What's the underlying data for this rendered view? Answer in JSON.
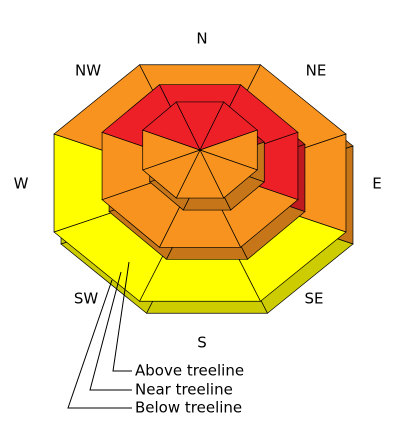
{
  "directions": [
    "N",
    "NE",
    "E",
    "SE",
    "S",
    "SW",
    "W",
    "NW"
  ],
  "bands": [
    {
      "label": "Below treeline",
      "colors": [
        "#f7931e",
        "#f7931e",
        "#f7931e",
        "#ffff00",
        "#ffff00",
        "#ffff00",
        "#ffff00",
        "#f7931e"
      ]
    },
    {
      "label": "Near treeline",
      "colors": [
        "#ee2027",
        "#ee2027",
        "#ee2027",
        "#f7931e",
        "#f7931e",
        "#f7931e",
        "#f7931e",
        "#ee2027"
      ]
    },
    {
      "label": "Above treeline",
      "colors": [
        "#ee2027",
        "#ee2027",
        "#f7931e",
        "#f7931e",
        "#f7931e",
        "#f7931e",
        "#f7931e",
        "#ee2027"
      ]
    }
  ]
}
